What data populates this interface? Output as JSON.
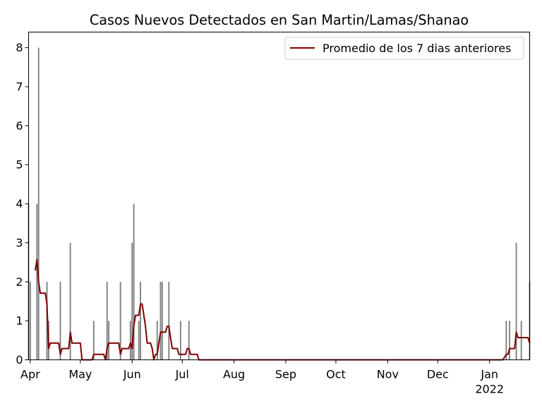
{
  "chart_data": {
    "type": "bar",
    "title": "Casos Nuevos Detectados en San Martin/Lamas/Shanao",
    "xlabel": "",
    "ylabel": "",
    "ylim": [
      0,
      8.4
    ],
    "yticks": [
      0,
      1,
      2,
      3,
      4,
      5,
      6,
      7,
      8
    ],
    "x_start_date": "2021-03-31",
    "x_end_date": "2022-01-25",
    "xticks": [
      {
        "date": "2021-04-01",
        "label": "Apr",
        "sublabel": ""
      },
      {
        "date": "2021-05-01",
        "label": "May",
        "sublabel": ""
      },
      {
        "date": "2021-06-01",
        "label": "Jun",
        "sublabel": ""
      },
      {
        "date": "2021-07-01",
        "label": "Jul",
        "sublabel": ""
      },
      {
        "date": "2021-08-01",
        "label": "Aug",
        "sublabel": ""
      },
      {
        "date": "2021-09-01",
        "label": "Sep",
        "sublabel": ""
      },
      {
        "date": "2021-10-01",
        "label": "Oct",
        "sublabel": ""
      },
      {
        "date": "2021-11-01",
        "label": "Nov",
        "sublabel": ""
      },
      {
        "date": "2021-12-01",
        "label": "Dec",
        "sublabel": ""
      },
      {
        "date": "2022-01-01",
        "label": "Jan",
        "sublabel": "2022"
      }
    ],
    "grid": false,
    "legend_position": "top-right",
    "bar_color": "#808080",
    "bars": [
      {
        "date": "2021-03-31",
        "value": 4
      },
      {
        "date": "2021-04-01",
        "value": 2
      },
      {
        "date": "2021-04-05",
        "value": 4
      },
      {
        "date": "2021-04-06",
        "value": 8
      },
      {
        "date": "2021-04-11",
        "value": 2
      },
      {
        "date": "2021-04-12",
        "value": 1
      },
      {
        "date": "2021-04-19",
        "value": 2
      },
      {
        "date": "2021-04-25",
        "value": 3
      },
      {
        "date": "2021-05-09",
        "value": 1
      },
      {
        "date": "2021-05-17",
        "value": 2
      },
      {
        "date": "2021-05-18",
        "value": 1
      },
      {
        "date": "2021-05-25",
        "value": 2
      },
      {
        "date": "2021-05-31",
        "value": 1
      },
      {
        "date": "2021-06-01",
        "value": 3
      },
      {
        "date": "2021-06-02",
        "value": 4
      },
      {
        "date": "2021-06-05",
        "value": 1
      },
      {
        "date": "2021-06-06",
        "value": 2
      },
      {
        "date": "2021-06-16",
        "value": 1
      },
      {
        "date": "2021-06-18",
        "value": 2
      },
      {
        "date": "2021-06-19",
        "value": 2
      },
      {
        "date": "2021-06-23",
        "value": 2
      },
      {
        "date": "2021-06-30",
        "value": 1
      },
      {
        "date": "2021-07-05",
        "value": 1
      },
      {
        "date": "2022-01-11",
        "value": 1
      },
      {
        "date": "2022-01-13",
        "value": 1
      },
      {
        "date": "2022-01-17",
        "value": 3
      },
      {
        "date": "2022-01-20",
        "value": 1
      },
      {
        "date": "2022-01-25",
        "value": 2
      }
    ],
    "series": [
      {
        "name": "Promedio de los 7 dias anteriores",
        "color": "#800000",
        "points": [
          [
            "2021-04-04",
            2.29
          ],
          [
            "2021-04-05",
            2.57
          ],
          [
            "2021-04-06",
            2.0
          ],
          [
            "2021-04-07",
            1.71
          ],
          [
            "2021-04-10",
            1.71
          ],
          [
            "2021-04-11",
            1.43
          ],
          [
            "2021-04-12",
            0.29
          ],
          [
            "2021-04-13",
            0.43
          ],
          [
            "2021-04-18",
            0.43
          ],
          [
            "2021-04-19",
            0.14
          ],
          [
            "2021-04-20",
            0.29
          ],
          [
            "2021-04-24",
            0.29
          ],
          [
            "2021-04-25",
            0.71
          ],
          [
            "2021-04-26",
            0.43
          ],
          [
            "2021-05-01",
            0.43
          ],
          [
            "2021-05-02",
            0.0
          ],
          [
            "2021-05-08",
            0.0
          ],
          [
            "2021-05-09",
            0.14
          ],
          [
            "2021-05-15",
            0.14
          ],
          [
            "2021-05-16",
            0.0
          ],
          [
            "2021-05-17",
            0.29
          ],
          [
            "2021-05-18",
            0.43
          ],
          [
            "2021-05-24",
            0.43
          ],
          [
            "2021-05-25",
            0.14
          ],
          [
            "2021-05-26",
            0.29
          ],
          [
            "2021-05-30",
            0.29
          ],
          [
            "2021-05-31",
            0.43
          ],
          [
            "2021-06-01",
            0.29
          ],
          [
            "2021-06-02",
            0.86
          ],
          [
            "2021-06-03",
            1.14
          ],
          [
            "2021-06-05",
            1.14
          ],
          [
            "2021-06-06",
            1.43
          ],
          [
            "2021-06-07",
            1.43
          ],
          [
            "2021-06-09",
            0.86
          ],
          [
            "2021-06-10",
            0.43
          ],
          [
            "2021-06-12",
            0.43
          ],
          [
            "2021-06-13",
            0.29
          ],
          [
            "2021-06-14",
            0.0
          ],
          [
            "2021-06-15",
            0.14
          ],
          [
            "2021-06-16",
            0.14
          ],
          [
            "2021-06-17",
            0.43
          ],
          [
            "2021-06-18",
            0.71
          ],
          [
            "2021-06-21",
            0.71
          ],
          [
            "2021-06-22",
            0.86
          ],
          [
            "2021-06-23",
            0.86
          ],
          [
            "2021-06-24",
            0.57
          ],
          [
            "2021-06-25",
            0.29
          ],
          [
            "2021-06-28",
            0.29
          ],
          [
            "2021-06-29",
            0.14
          ],
          [
            "2021-07-03",
            0.14
          ],
          [
            "2021-07-04",
            0.29
          ],
          [
            "2021-07-05",
            0.29
          ],
          [
            "2021-07-06",
            0.14
          ],
          [
            "2021-07-10",
            0.14
          ],
          [
            "2021-07-11",
            0.0
          ],
          [
            "2022-01-09",
            0.0
          ],
          [
            "2022-01-11",
            0.14
          ],
          [
            "2022-01-12",
            0.14
          ],
          [
            "2022-01-13",
            0.29
          ],
          [
            "2022-01-16",
            0.29
          ],
          [
            "2022-01-17",
            0.71
          ],
          [
            "2022-01-18",
            0.57
          ],
          [
            "2022-01-23",
            0.57
          ],
          [
            "2022-01-24",
            0.57
          ],
          [
            "2022-01-25",
            0.43
          ]
        ]
      }
    ]
  }
}
